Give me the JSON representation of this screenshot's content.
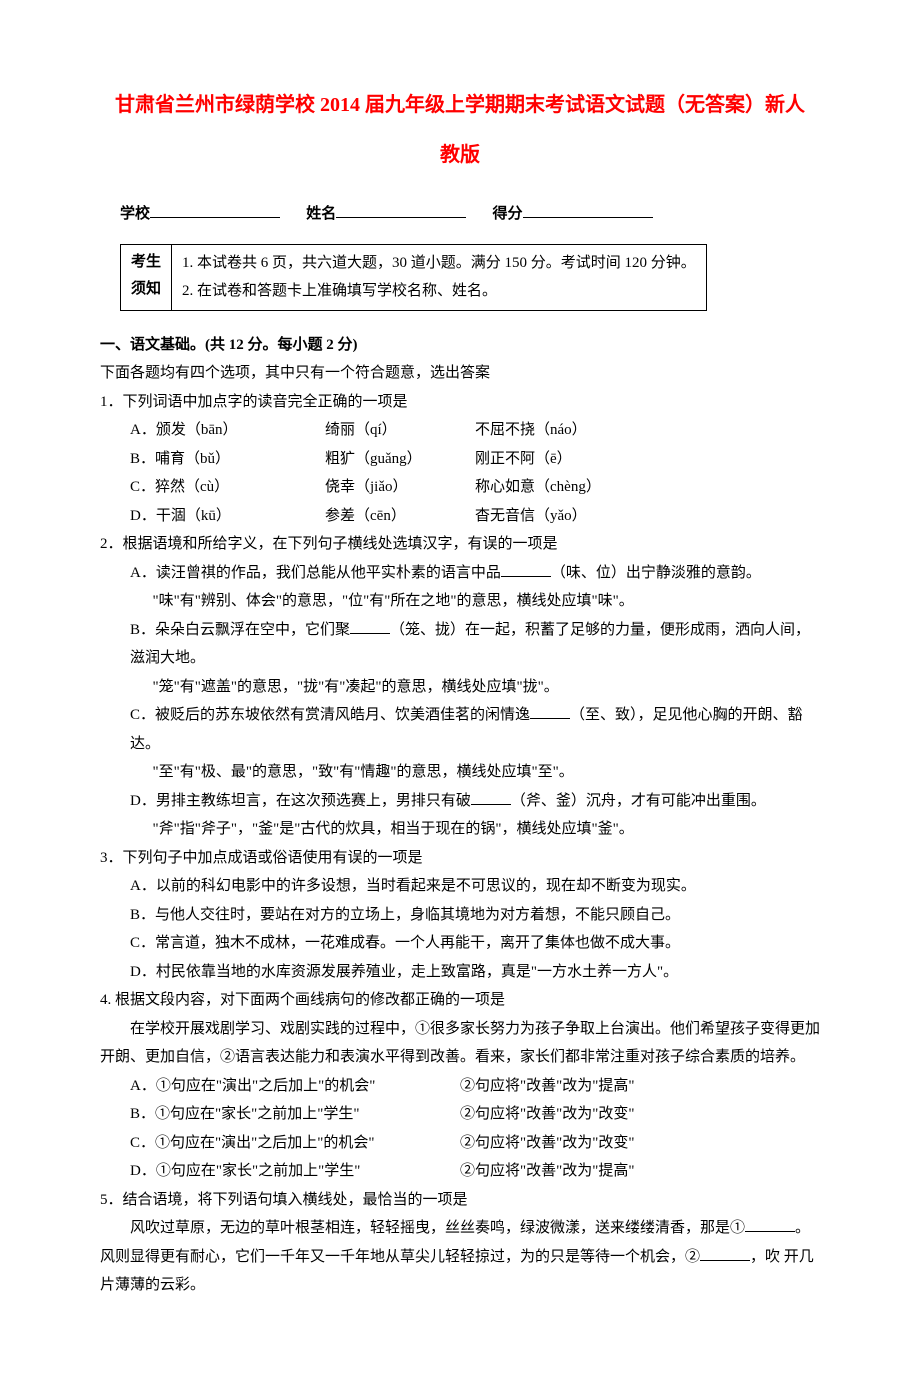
{
  "title_line1": "甘肃省兰州市绿荫学校 2014 届九年级上学期期末考试语文试题（无答案）新人",
  "title_line2": "教版",
  "form": {
    "school": "学校",
    "name": "姓名",
    "score": "得分"
  },
  "notice": {
    "label": "考生须知",
    "item1": "1. 本试卷共 6 页，共六道大题，30 道小题。满分 150 分。考试时间 120 分钟。",
    "item2": "2. 在试卷和答题卡上准确填写学校名称、姓名。"
  },
  "section1": {
    "heading": "一、语文基础。(共 12 分。每小题 2 分)",
    "intro": "下面各题均有四个选项，其中只有一个符合题意，选出答案"
  },
  "q1": {
    "stem": "1．下列词语中加点字的读音完全正确的一项是",
    "a1": "A．颁发（bān）",
    "a2": "绮丽（qí）",
    "a3": "不屈不挠（náo）",
    "b1": "B．哺育（bǔ）",
    "b2": "粗犷（guǎng）",
    "b3": "刚正不阿（ē）",
    "c1": "C．猝然（cù）",
    "c2": "侥幸（jiǎo）",
    "c3": "称心如意（chèng）",
    "d1": "D．干涸（kū）",
    "d2": "参差（cēn）",
    "d3": "杳无音信（yǎo）"
  },
  "q2": {
    "stem": "2．根据语境和所给字义，在下列句子横线处选填汉字，有误的一项是",
    "a1": "A．读汪曾祺的作品，我们总能从他平实朴素的语言中品",
    "a2": "（味、位）出宁静淡雅的意韵。",
    "a_hint": "\"味\"有\"辨别、体会\"的意思，\"位\"有\"所在之地\"的意思，横线处应填\"味\"。",
    "b1": "B．朵朵白云飘浮在空中，它们聚",
    "b2": "（笼、拢）在一起，积蓄了足够的力量，便形成雨，洒向人间，滋润大地。",
    "b_hint": "\"笼\"有\"遮盖\"的意思，\"拢\"有\"凑起\"的意思，横线处应填\"拢\"。",
    "c1": "C．被贬后的苏东坡依然有赏清风皓月、饮美酒佳茗的闲情逸",
    "c2": "（至、致），足见他心胸的开朗、豁达。",
    "c_hint": "\"至\"有\"极、最\"的意思，\"致\"有\"情趣\"的意思，横线处应填\"至\"。",
    "d1": "D．男排主教练坦言，在这次预选赛上，男排只有破",
    "d2": "（斧、釜）沉舟，才有可能冲出重围。",
    "d_hint": "\"斧\"指\"斧子\"，\"釜\"是\"古代的炊具，相当于现在的锅\"，横线处应填\"釜\"。"
  },
  "q3": {
    "stem": "3．下列句子中加点成语或俗语使用有误的一项是",
    "a": "A．以前的科幻电影中的许多设想，当时看起来是不可思议的，现在却不断变为现实。",
    "b": "B．与他人交往时，要站在对方的立场上，身临其境地为对方着想，不能只顾自己。",
    "c": "C．常言道，独木不成林，一花难成春。一个人再能干，离开了集体也做不成大事。",
    "d": "D．村民依靠当地的水库资源发展养殖业，走上致富路，真是\"一方水土养一方人\"。"
  },
  "q4": {
    "stem": "4. 根据文段内容，对下面两个画线病句的修改都正确的一项是",
    "passage": "在学校开展戏剧学习、戏剧实践的过程中，①很多家长努力为孩子争取上台演出。他们希望孩子变得更加开朗、更加自信，②语言表达能力和表演水平得到改善。看来，家长们都非常注重对孩子综合素质的培养。",
    "a1": "A．①句应在\"演出\"之后加上\"的机会\"",
    "a2": "②句应将\"改善\"改为\"提高\"",
    "b1": "B．①句应在\"家长\"之前加上\"学生\"",
    "b2": "②句应将\"改善\"改为\"改变\"",
    "c1": "C．①句应在\"演出\"之后加上\"的机会\"",
    "c2": "②句应将\"改善\"改为\"改变\"",
    "d1": "D．①句应在\"家长\"之前加上\"学生\"",
    "d2": "②句应将\"改善\"改为\"提高\""
  },
  "q5": {
    "stem": "5．结合语境，将下列语句填入横线处，最恰当的一项是",
    "p1a": "风吹过草原，无边的草叶根茎相连，轻轻摇曳，丝丝奏鸣，绿波微漾，送来缕缕清香，那是①",
    "p1b": "。",
    "p2a": "风则显得更有耐心，它们一千年又一千年地从草尖儿轻轻掠过，为的只是等待一个机会，②",
    "p2b": "，吹",
    "p3": "开几片薄薄的云彩。"
  }
}
